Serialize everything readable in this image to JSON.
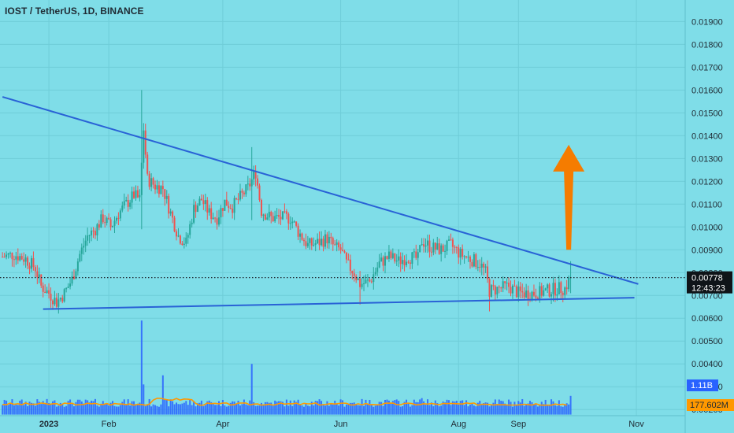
{
  "header": {
    "title": "IOST / TetherUS, 1D, BINANCE"
  },
  "colors": {
    "background": "#7fdde8",
    "up": "#26a69a",
    "down": "#ef5350",
    "trendline": "#2962d6",
    "arrow": "#f57c00",
    "volume": "#2962ff",
    "volume_ma": "#ff9800"
  },
  "chart_data": {
    "type": "candlestick",
    "title": "IOST / TetherUS, 1D, BINANCE",
    "y_ticks": [
      "0.01900",
      "0.01800",
      "0.01700",
      "0.01600",
      "0.01500",
      "0.01400",
      "0.01300",
      "0.01200",
      "0.01100",
      "0.01000",
      "0.00900",
      "0.00800",
      "0.00700",
      "0.00600",
      "0.00500",
      "0.00400",
      "0.00300",
      "0.00200"
    ],
    "ylim": [
      0.0018,
      0.0196
    ],
    "x_ticks": [
      "2023",
      "Feb",
      "Apr",
      "Jun",
      "Aug",
      "Sep",
      "Nov"
    ],
    "last_price": "0.00778",
    "countdown": "12:43:23",
    "volume_label": "1.11B",
    "volume_ma_label": "177.602M",
    "price_path": [
      [
        "2022-12-08",
        0.0087
      ],
      [
        "2022-12-14",
        0.0088
      ],
      [
        "2022-12-20",
        0.0086
      ],
      [
        "2022-12-25",
        0.0082
      ],
      [
        "2022-12-28",
        0.0074
      ],
      [
        "2023-01-01",
        0.0071
      ],
      [
        "2023-01-05",
        0.0067
      ],
      [
        "2023-01-09",
        0.0071
      ],
      [
        "2023-01-13",
        0.0077
      ],
      [
        "2023-01-17",
        0.0088
      ],
      [
        "2023-01-21",
        0.0096
      ],
      [
        "2023-01-25",
        0.0099
      ],
      [
        "2023-01-29",
        0.0104
      ],
      [
        "2023-02-02",
        0.01
      ],
      [
        "2023-02-06",
        0.0106
      ],
      [
        "2023-02-10",
        0.011
      ],
      [
        "2023-02-14",
        0.0114
      ],
      [
        "2023-02-17",
        0.0112
      ],
      [
        "2023-02-19",
        0.0143
      ],
      [
        "2023-02-21",
        0.0121
      ],
      [
        "2023-02-25",
        0.0118
      ],
      [
        "2023-03-01",
        0.0117
      ],
      [
        "2023-03-05",
        0.0106
      ],
      [
        "2023-03-09",
        0.0096
      ],
      [
        "2023-03-13",
        0.0093
      ],
      [
        "2023-03-17",
        0.0108
      ],
      [
        "2023-03-21",
        0.0112
      ],
      [
        "2023-03-25",
        0.0106
      ],
      [
        "2023-03-29",
        0.0104
      ],
      [
        "2023-04-02",
        0.0111
      ],
      [
        "2023-04-06",
        0.0109
      ],
      [
        "2023-04-10",
        0.0113
      ],
      [
        "2023-04-14",
        0.0117
      ],
      [
        "2023-04-18",
        0.0124
      ],
      [
        "2023-04-21",
        0.0107
      ],
      [
        "2023-04-26",
        0.0104
      ],
      [
        "2023-05-01",
        0.0104
      ],
      [
        "2023-05-06",
        0.0104
      ],
      [
        "2023-05-10",
        0.0098
      ],
      [
        "2023-05-15",
        0.0092
      ],
      [
        "2023-05-20",
        0.0093
      ],
      [
        "2023-05-25",
        0.0095
      ],
      [
        "2023-05-29",
        0.0091
      ],
      [
        "2023-06-01",
        0.009
      ],
      [
        "2023-06-04",
        0.0084
      ],
      [
        "2023-06-08",
        0.008
      ],
      [
        "2023-06-11",
        0.0075
      ],
      [
        "2023-06-16",
        0.0076
      ],
      [
        "2023-06-21",
        0.0084
      ],
      [
        "2023-06-26",
        0.0087
      ],
      [
        "2023-07-01",
        0.0085
      ],
      [
        "2023-07-06",
        0.0087
      ],
      [
        "2023-07-11",
        0.0086
      ],
      [
        "2023-07-13",
        0.0094
      ],
      [
        "2023-07-18",
        0.0091
      ],
      [
        "2023-07-23",
        0.009
      ],
      [
        "2023-07-28",
        0.0092
      ],
      [
        "2023-08-02",
        0.0088
      ],
      [
        "2023-08-07",
        0.0086
      ],
      [
        "2023-08-12",
        0.0084
      ],
      [
        "2023-08-15",
        0.008
      ],
      [
        "2023-08-17",
        0.0072
      ],
      [
        "2023-08-22",
        0.0073
      ],
      [
        "2023-08-27",
        0.0074
      ],
      [
        "2023-09-01",
        0.0071
      ],
      [
        "2023-09-06",
        0.0071
      ],
      [
        "2023-09-11",
        0.0071
      ],
      [
        "2023-09-16",
        0.0072
      ],
      [
        "2023-09-21",
        0.0073
      ],
      [
        "2023-09-25",
        0.0073
      ],
      [
        "2023-09-28",
        0.0078
      ]
    ],
    "wick_extremes": [
      [
        "2023-02-18",
        0.0099,
        0.016
      ],
      [
        "2023-04-16",
        0.0103,
        0.0135
      ],
      [
        "2023-06-11",
        0.0066,
        0.008
      ],
      [
        "2023-08-17",
        0.0063,
        0.0076
      ],
      [
        "2023-09-28",
        0.0071,
        0.0085
      ],
      [
        "2023-01-05",
        0.0064,
        0.0071
      ]
    ],
    "volume_spikes": [
      [
        "2023-02-18",
        0.0059
      ],
      [
        "2023-02-19",
        0.0031
      ],
      [
        "2023-03-01",
        0.0035
      ],
      [
        "2023-04-16",
        0.004
      ],
      [
        "2023-07-13",
        0.0025
      ],
      [
        "2023-09-28",
        0.0026
      ]
    ],
    "volume_base": 0.00205,
    "resistance_line": [
      [
        "2022-12-08",
        0.0157
      ],
      [
        "2023-11-02",
        0.0075
      ]
    ],
    "support_line": [
      [
        "2022-12-29",
        0.0064
      ],
      [
        "2023-10-31",
        0.0069
      ]
    ],
    "arrow": {
      "date": "2023-09-27",
      "from": 0.009,
      "to": 0.0136
    }
  }
}
